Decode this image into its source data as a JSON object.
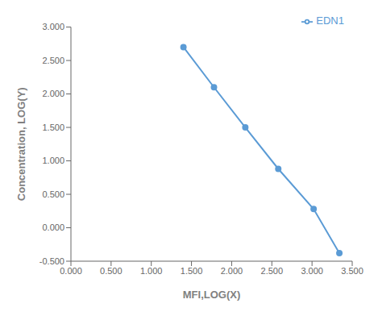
{
  "chart_data": {
    "type": "line",
    "x": [
      1.4,
      1.78,
      2.17,
      2.58,
      3.02,
      3.34
    ],
    "series": [
      {
        "name": "EDN1",
        "color": "#5B9BD5",
        "marker": "circle",
        "values": [
          2.7,
          2.1,
          1.5,
          0.88,
          0.28,
          -0.38
        ]
      }
    ],
    "xlabel": "MFI,LOG(X)",
    "ylabel": "Concentration, LOG(Y)",
    "xlim": [
      0.0,
      3.5
    ],
    "ylim": [
      -0.5,
      3.0
    ],
    "xticks": [
      {
        "value": 0.0,
        "label": "0.000"
      },
      {
        "value": 0.5,
        "label": "0.500"
      },
      {
        "value": 1.0,
        "label": "1.000"
      },
      {
        "value": 1.5,
        "label": "1.500"
      },
      {
        "value": 2.0,
        "label": "2.000"
      },
      {
        "value": 2.5,
        "label": "2.500"
      },
      {
        "value": 3.0,
        "label": "3.000"
      },
      {
        "value": 3.5,
        "label": "3.500"
      }
    ],
    "yticks": [
      {
        "value": -0.5,
        "label": "-0.500"
      },
      {
        "value": 0.0,
        "label": "0.000"
      },
      {
        "value": 0.5,
        "label": "0.500"
      },
      {
        "value": 1.0,
        "label": "1.000"
      },
      {
        "value": 1.5,
        "label": "1.500"
      },
      {
        "value": 2.0,
        "label": "2.000"
      },
      {
        "value": 2.5,
        "label": "2.500"
      },
      {
        "value": 3.0,
        "label": "3.000"
      }
    ],
    "legend": "upper right"
  }
}
